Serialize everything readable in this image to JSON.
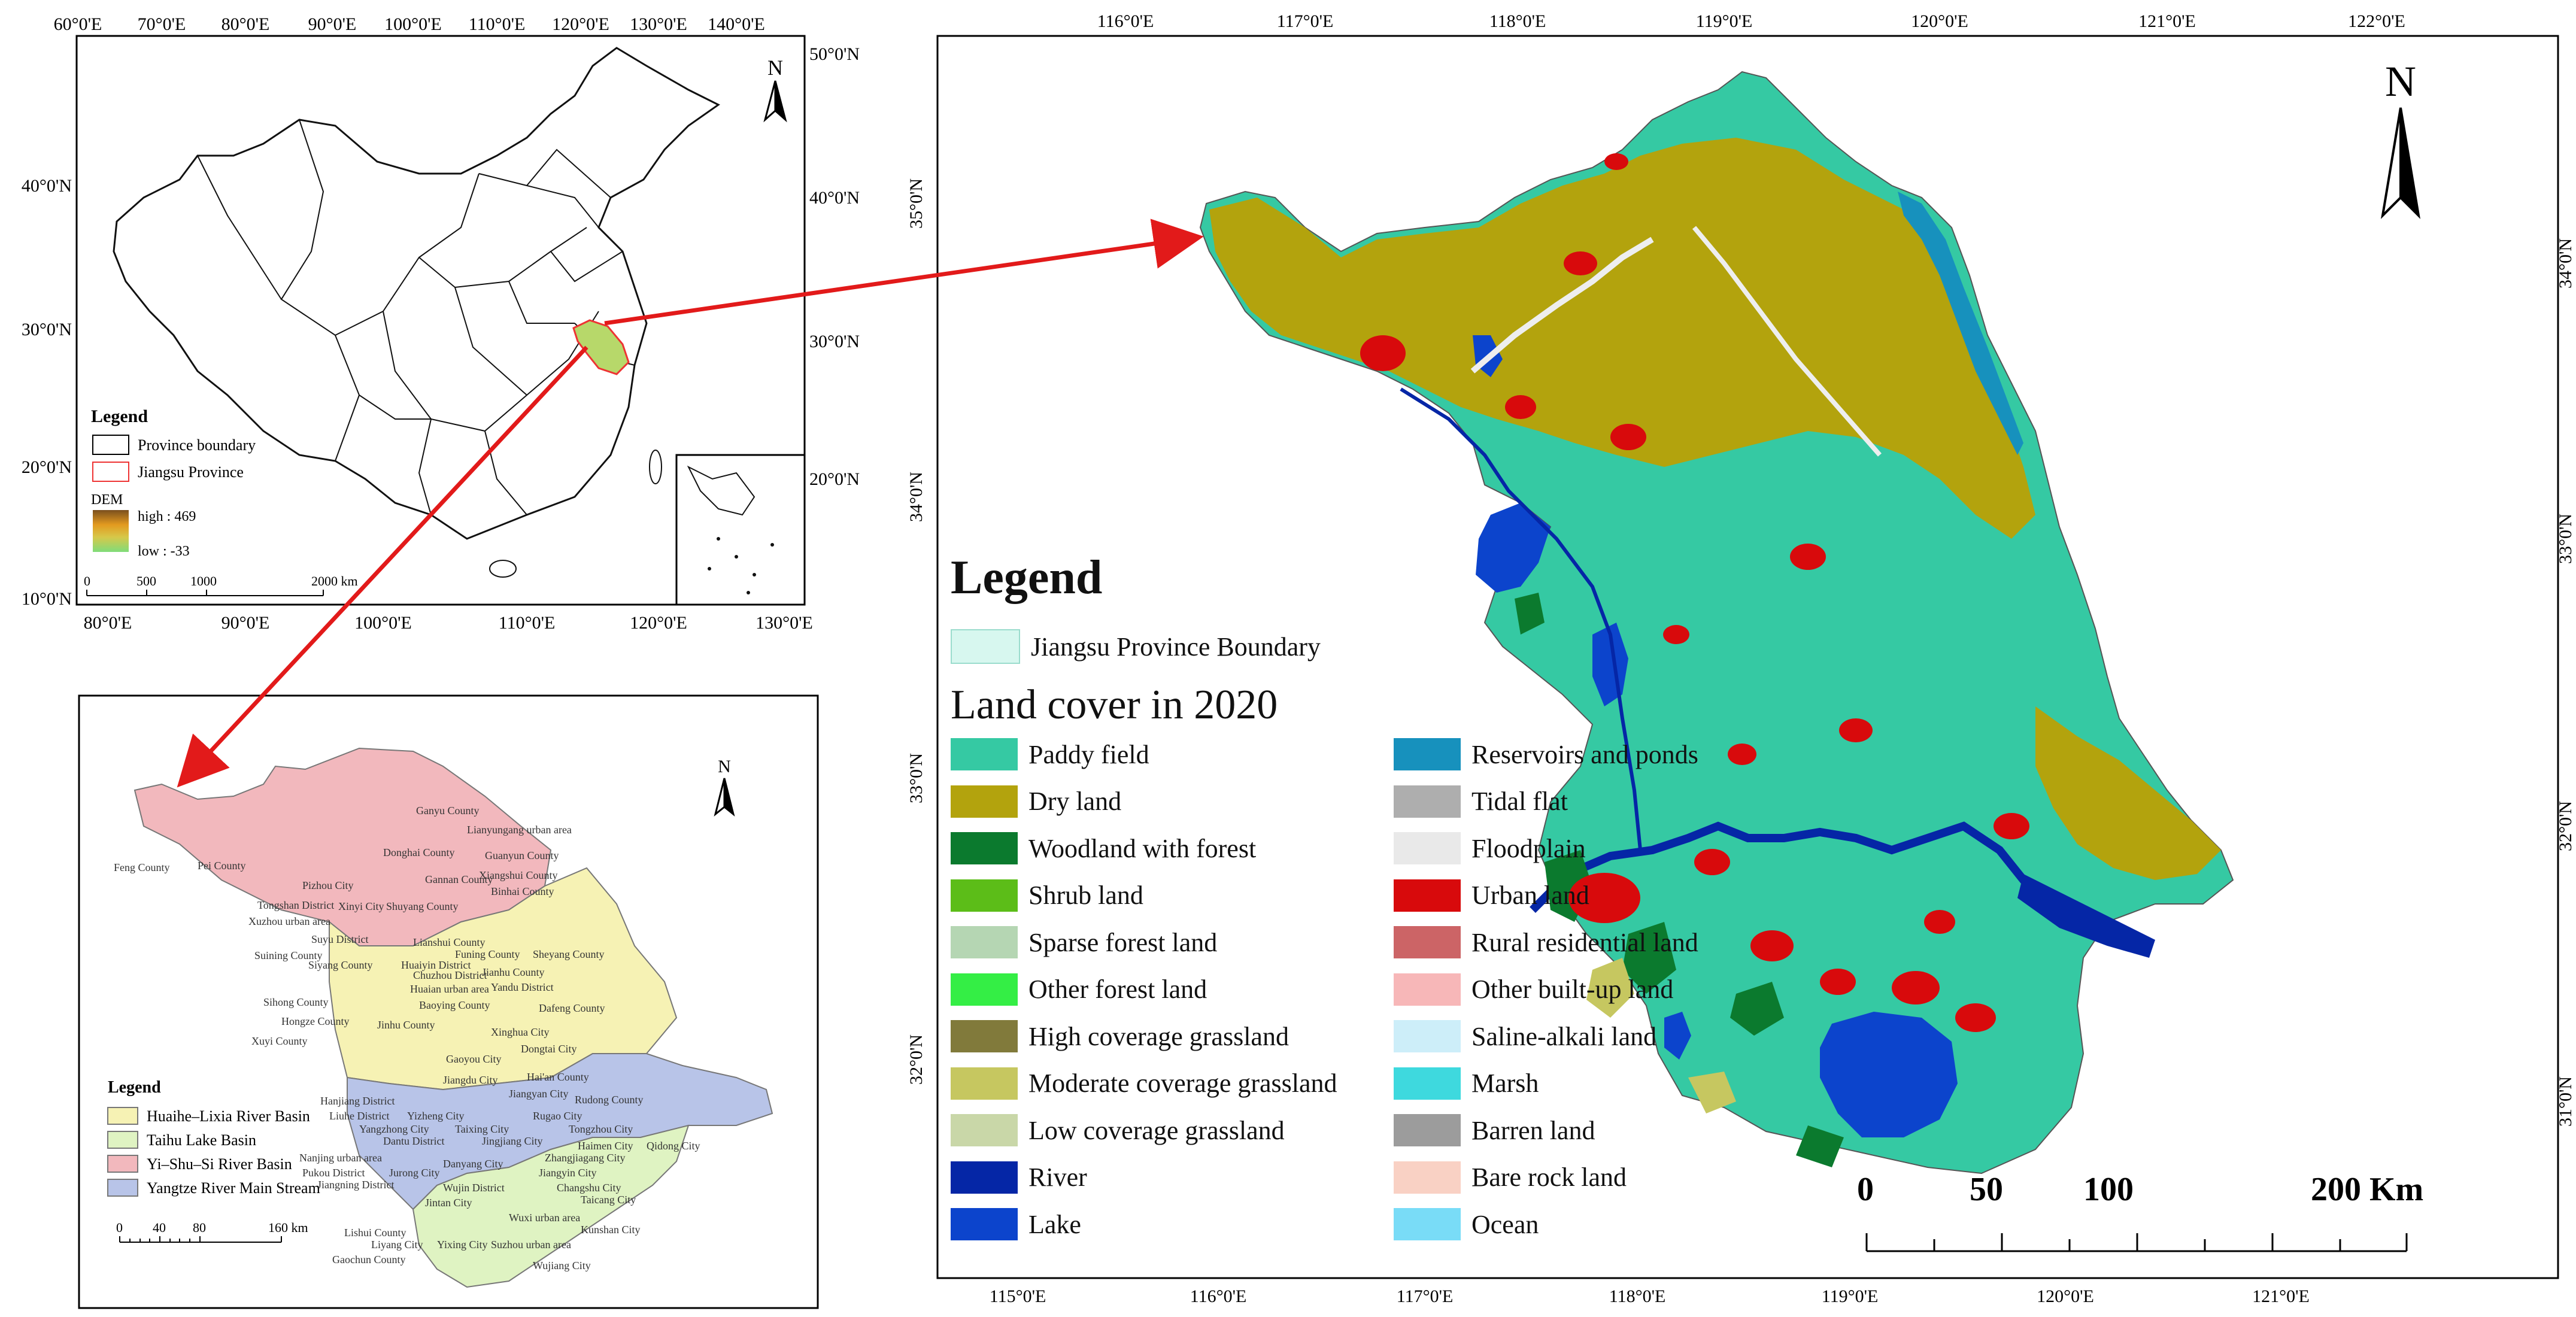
{
  "overview": {
    "top_lon_labels": [
      "60°0'E",
      "70°0'E",
      "80°0'E",
      "90°0'E",
      "100°0'E",
      "110°0'E",
      "120°0'E",
      "130°0'E",
      "140°0'E"
    ],
    "bottom_lon_labels": [
      "80°0'E",
      "90°0'E",
      "100°0'E",
      "110°0'E",
      "120°0'E",
      "130°0'E"
    ],
    "left_lat_labels": [
      "40°0'N",
      "30°0'N",
      "20°0'N",
      "10°0'N"
    ],
    "right_lat_labels": [
      "50°0'N",
      "40°0'N",
      "30°0'N",
      "20°0'N"
    ],
    "legend": {
      "title": "Legend",
      "province_boundary": "Province boundary",
      "jiangsu": "Jiangsu Province",
      "dem": "DEM",
      "high": "high : 469",
      "low": "low : -33",
      "scale": [
        "0",
        "500",
        "1000",
        "2000 km"
      ]
    },
    "north": "N"
  },
  "basins": {
    "north": "N",
    "counties": [
      "Ganyu County",
      "Lianyungang urban area",
      "Donghai County",
      "Guanyun County",
      "Feng County",
      "Pei County",
      "Pizhou City",
      "Gannan County",
      "Xiangshui County",
      "Binhai County",
      "Tongshan District",
      "Xinyi City",
      "Shuyang County",
      "Xuzhou urban area",
      "Suyu District",
      "Lianshui County",
      "Funing County",
      "Sheyang County",
      "Suining County",
      "Siyang County",
      "Huaiyin District",
      "Jianhu County",
      "Chuzhou District",
      "Yandu District",
      "Huaian urban area",
      "Sihong County",
      "Baoying County",
      "Dafeng County",
      "Hongze County",
      "Jinhu County",
      "Xinghua City",
      "Dongtai City",
      "Xuyi County",
      "Gaoyou City",
      "Jiangdu City",
      "Hai'an County",
      "Jiangyan City",
      "Rudong County",
      "Hanjiang District",
      "Liuhe District",
      "Yizheng City",
      "Rugao City",
      "Yangzhong City",
      "Taixing City",
      "Tongzhou City",
      "Dantu District",
      "Jingjiang City",
      "Haimen City",
      "Qidong City",
      "Zhangjiagang City",
      "Nanjing urban area",
      "Danyang City",
      "Jiangyin City",
      "Pukou District",
      "Jurong City",
      "Changshu City",
      "Jiangning District",
      "Wujin District",
      "Taicang City",
      "Jintan City",
      "Wuxi urban area",
      "Kunshan City",
      "Lishui County",
      "Liyang City",
      "Yixing City",
      "Suzhou urban area",
      "Gaochun County",
      "Wujiang City"
    ],
    "legend": {
      "title": "Legend",
      "items": [
        {
          "label": "Huaihe–Lixia River Basin",
          "color": "#f6f2b4"
        },
        {
          "label": "Taihu Lake Basin",
          "color": "#dff3c2"
        },
        {
          "label": "Yi–Shu–Si River Basin",
          "color": "#f2b8bd"
        },
        {
          "label": "Yangtze River Main Stream",
          "color": "#b8c4e8"
        }
      ],
      "scale": [
        "0",
        "40",
        "80",
        "160 km"
      ]
    }
  },
  "main_map": {
    "top_lon_labels": [
      "116°0'E",
      "117°0'E",
      "118°0'E",
      "119°0'E",
      "120°0'E",
      "121°0'E",
      "122°0'E"
    ],
    "bottom_lon_labels": [
      "115°0'E",
      "116°0'E",
      "117°0'E",
      "118°0'E",
      "119°0'E",
      "120°0'E",
      "121°0'E"
    ],
    "left_lat_labels": [
      "35°0'N",
      "34°0'N",
      "33°0'N",
      "32°0'N"
    ],
    "right_lat_labels": [
      "34°0'N",
      "33°0'N",
      "32°0'N",
      "31°0'N"
    ],
    "north": "N",
    "scale": [
      "0",
      "50",
      "100",
      "200 Km"
    ],
    "legend": {
      "title": "Legend",
      "boundary": {
        "label": "Jiangsu Province Boundary",
        "color": "#d7f7ef"
      },
      "subtitle": "Land cover in 2020",
      "left_items": [
        {
          "label": "Paddy field",
          "color": "#35c9a3"
        },
        {
          "label": "Dry land",
          "color": "#b3a30d"
        },
        {
          "label": "Woodland with forest",
          "color": "#0b7a2e"
        },
        {
          "label": "Shrub land",
          "color": "#5cbd18"
        },
        {
          "label": "Sparse forest land",
          "color": "#b5d6b3"
        },
        {
          "label": "Other forest land",
          "color": "#34ee45"
        },
        {
          "label": "High coverage grassland",
          "color": "#817a3b"
        },
        {
          "label": "Moderate coverage grassland",
          "color": "#c6c760"
        },
        {
          "label": "Low coverage grassland",
          "color": "#c9d7a8"
        },
        {
          "label": "River",
          "color": "#0526a6"
        },
        {
          "label": "Lake",
          "color": "#0c44cc"
        }
      ],
      "right_items": [
        {
          "label": "Reservoirs and ponds",
          "color": "#1791bd"
        },
        {
          "label": "Tidal flat",
          "color": "#aeaeae"
        },
        {
          "label": "Floodplain",
          "color": "#e9e9e9"
        },
        {
          "label": "Urban land",
          "color": "#d80a0c"
        },
        {
          "label": "Rural residential land",
          "color": "#cc6466"
        },
        {
          "label": "Other built-up land",
          "color": "#f7b7b8"
        },
        {
          "label": "Saline-alkali land",
          "color": "#cdeef9"
        },
        {
          "label": "Marsh",
          "color": "#3ed9de"
        },
        {
          "label": "Barren land",
          "color": "#9c9c9c"
        },
        {
          "label": "Bare rock land",
          "color": "#f9d1c4"
        },
        {
          "label": "Ocean",
          "color": "#79dcf7"
        }
      ]
    }
  }
}
